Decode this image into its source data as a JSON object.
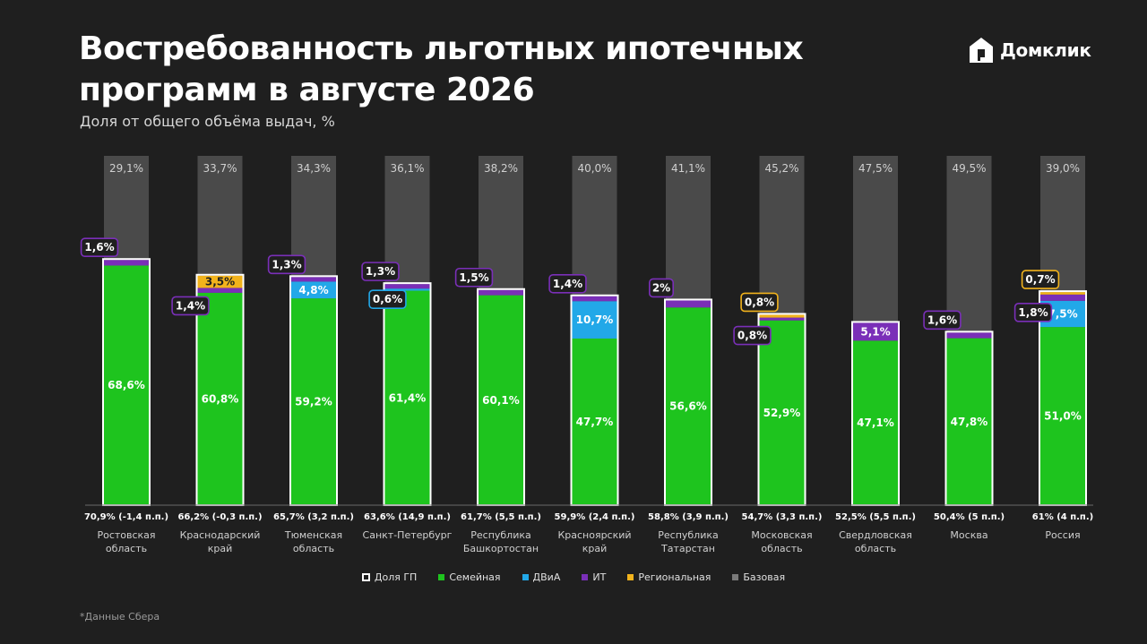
{
  "header": {
    "title": "Востребованность льготных ипотечных программ в августе 2026",
    "subtitle": "Доля от общего объёма выдач, %",
    "brand": "Домклик"
  },
  "footer": {
    "source": "*Данные Сбера"
  },
  "legend": [
    {
      "label": "Доля ГП",
      "color": "#ffffff",
      "key": "total"
    },
    {
      "label": "Семейная",
      "color": "#1ec41e",
      "key": "family"
    },
    {
      "label": "ДВиА",
      "color": "#22a8e8",
      "key": "dvia"
    },
    {
      "label": "ИТ",
      "color": "#7a2fb8",
      "key": "it"
    },
    {
      "label": "Региональная",
      "color": "#f2b31c",
      "key": "regional"
    },
    {
      "label": "Базовая",
      "color": "#4a4a4a",
      "key": "base"
    }
  ],
  "chart_data": {
    "type": "bar",
    "stacked": true,
    "categories": [
      "Ростовская область",
      "Краснодарский край",
      "Тюменская область",
      "Санкт-Петербург",
      "Республика Башкортостан",
      "Красноярский край",
      "Республика Татарстан",
      "Московская область",
      "Свердловская область",
      "Москва",
      "Россия"
    ],
    "total_labels": [
      "70,9% (-1,4 п.п.)",
      "66,2% (-0,3 п.п.)",
      "65,7% (3,2 п.п.)",
      "63,6% (14,9 п.п.)",
      "61,7% (5,5 п.п.)",
      "59,9% (2,4 п.п.)",
      "58,8% (3,9 п.п.)",
      "54,7% (3,3 п.п.)",
      "52,5% (5,5 п.п.)",
      "50,4% (5 п.п.)",
      "61% (4 п.п.)"
    ],
    "ylim": [
      0,
      100
    ],
    "series": [
      {
        "name": "Семейная",
        "key": "family",
        "color": "#1ec41e",
        "values": [
          68.6,
          60.8,
          59.2,
          61.4,
          60.1,
          47.7,
          56.6,
          52.9,
          47.1,
          47.8,
          51.0
        ],
        "labels": [
          "68,6%",
          "60,8%",
          "59,2%",
          "61,4%",
          "60,1%",
          "47,7%",
          "56,6%",
          "52,9%",
          "47,1%",
          "47,8%",
          "51,0%"
        ]
      },
      {
        "name": "ДВиА",
        "key": "dvia",
        "color": "#22a8e8",
        "values": [
          0,
          0,
          4.8,
          0.6,
          0,
          10.7,
          0,
          0,
          0,
          0,
          7.5
        ],
        "labels": [
          "",
          "",
          "4,8%",
          "0,6%",
          "",
          "10,7%",
          "",
          "",
          "",
          "",
          "7,5%"
        ]
      },
      {
        "name": "ИТ",
        "key": "it",
        "color": "#7a2fb8",
        "values": [
          1.6,
          1.4,
          1.3,
          1.3,
          1.5,
          1.4,
          2.0,
          0.8,
          5.1,
          1.6,
          1.8
        ],
        "labels": [
          "1,6%",
          "1,4%",
          "1,3%",
          "1,3%",
          "1,5%",
          "1,4%",
          "2%",
          "0,8%",
          "5,1%",
          "1,6%",
          "1,8%"
        ]
      },
      {
        "name": "Региональная",
        "key": "regional",
        "color": "#f2b31c",
        "values": [
          0,
          3.5,
          0,
          0,
          0,
          0,
          0,
          0.8,
          0,
          0,
          0.7
        ],
        "labels": [
          "",
          "3,5%",
          "",
          "",
          "",
          "",
          "",
          "0,8%",
          "",
          "",
          "0,7%"
        ]
      },
      {
        "name": "Базовая",
        "key": "base",
        "color": "#4a4a4a",
        "values": [
          29.1,
          33.7,
          34.3,
          36.1,
          38.2,
          40.0,
          41.1,
          45.2,
          47.5,
          49.5,
          39.0
        ],
        "labels": [
          "29,1%",
          "33,7%",
          "34,3%",
          "36,1%",
          "38,2%",
          "40,0%",
          "41,1%",
          "45,2%",
          "47,5%",
          "49,5%",
          "39,0%"
        ]
      }
    ]
  }
}
